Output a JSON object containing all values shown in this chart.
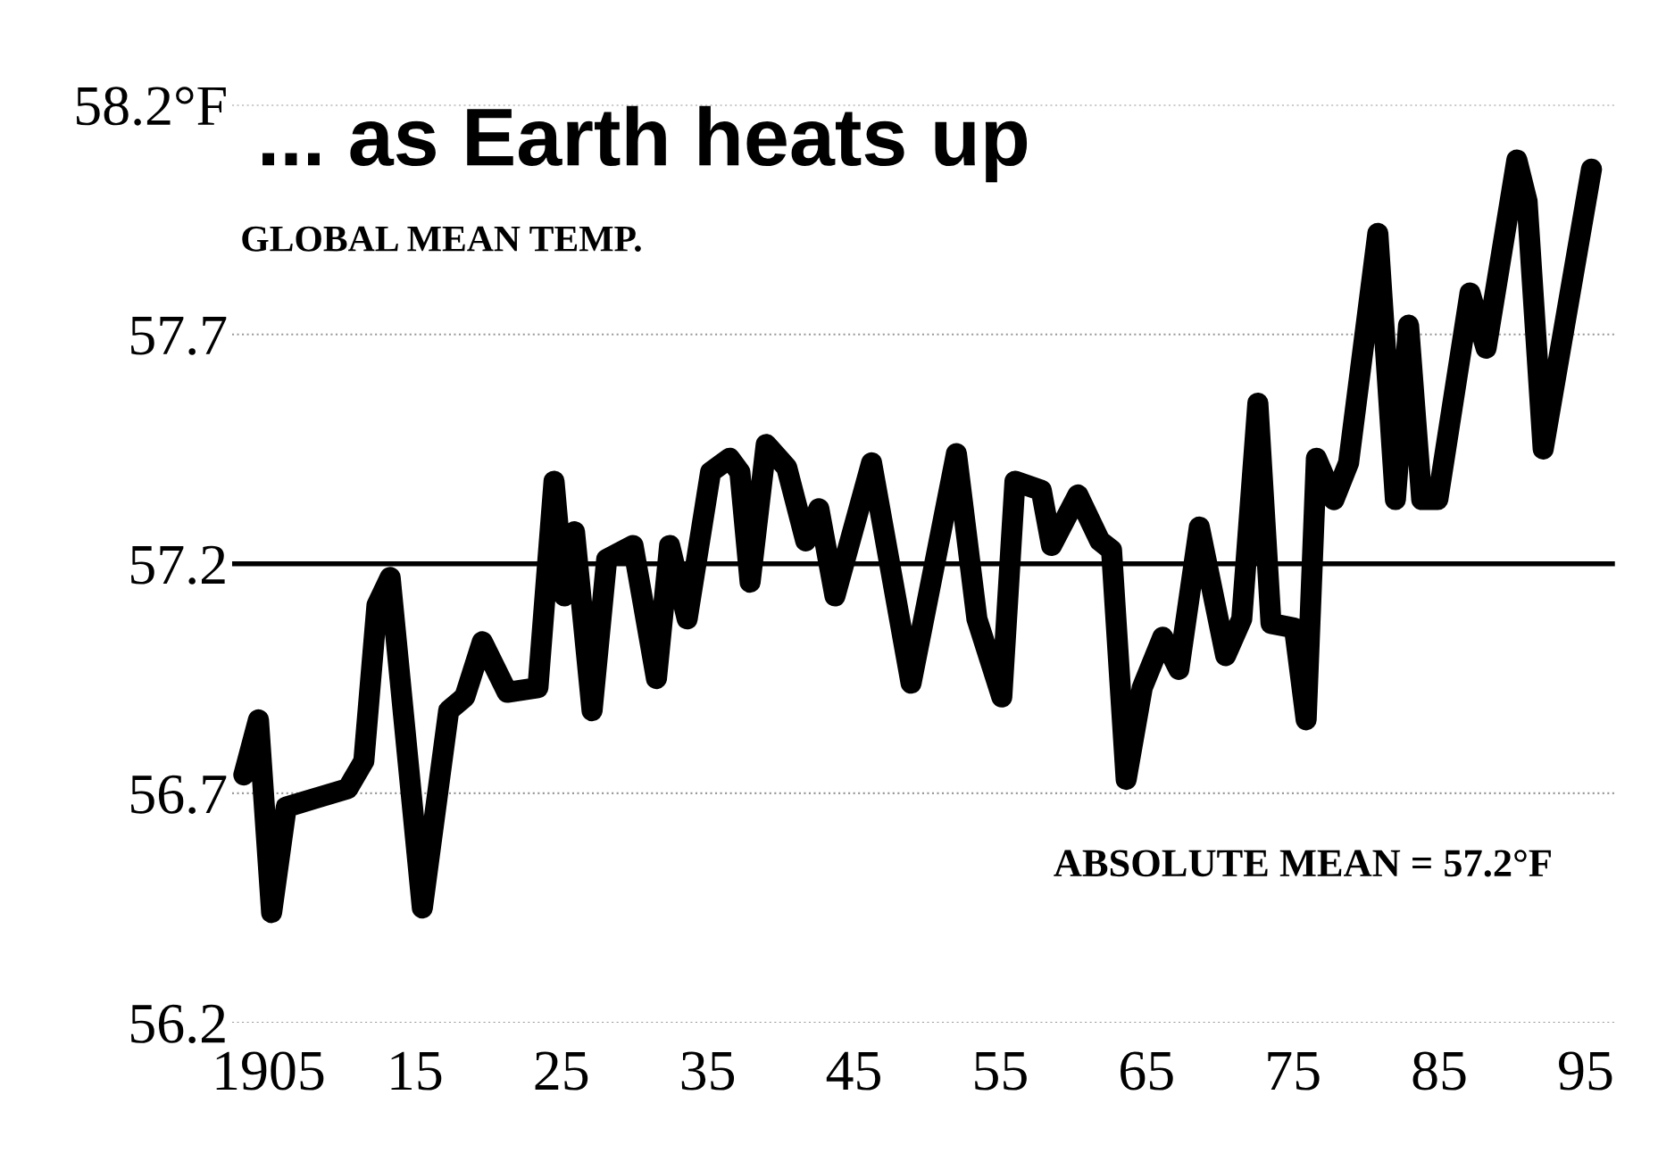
{
  "chart_data": {
    "type": "line",
    "title": "... as Earth heats up",
    "subtitle": "GLOBAL MEAN TEMP.",
    "x": [
      1903.3,
      1904.3,
      1905.2,
      1906.2,
      1908.3,
      1910.4,
      1911.5,
      1912.4,
      1913.3,
      1915.5,
      1917.3,
      1918.4,
      1919.6,
      1921.3,
      1923.4,
      1924.5,
      1925.2,
      1925.9,
      1927.1,
      1928.1,
      1929.9,
      1931.5,
      1932.4,
      1933.6,
      1935.2,
      1936.5,
      1937.2,
      1937.9,
      1939.0,
      1940.4,
      1941.7,
      1942.6,
      1943.7,
      1946.2,
      1948.9,
      1952.0,
      1953.4,
      1955.1,
      1956.0,
      1957.8,
      1958.5,
      1960.3,
      1961.8,
      1962.6,
      1963.6,
      1964.7,
      1966.1,
      1967.2,
      1968.6,
      1970.4,
      1971.5,
      1972.6,
      1973.5,
      1975.1,
      1975.9,
      1976.6,
      1977.8,
      1978.8,
      1980.8,
      1982.0,
      1982.9,
      1983.8,
      1984.9,
      1987.1,
      1988.2,
      1990.3,
      1991.0,
      1992.1,
      1995.4
    ],
    "series": [
      {
        "color": "#000000",
        "values": [
          56.74,
          56.86,
          56.44,
          56.67,
          56.69,
          56.71,
          56.77,
          57.11,
          57.17,
          56.45,
          56.88,
          56.91,
          57.03,
          56.92,
          56.93,
          57.38,
          57.13,
          57.27,
          56.88,
          57.21,
          57.24,
          56.95,
          57.24,
          57.08,
          57.4,
          57.43,
          57.4,
          57.16,
          57.46,
          57.41,
          57.25,
          57.32,
          57.13,
          57.42,
          56.94,
          57.44,
          57.08,
          56.91,
          57.38,
          57.36,
          57.24,
          57.35,
          57.25,
          57.23,
          56.73,
          56.93,
          57.04,
          56.97,
          57.28,
          57.0,
          57.08,
          57.55,
          57.07,
          57.06,
          56.86,
          57.43,
          57.34,
          57.42,
          57.92,
          57.34,
          57.72,
          57.34,
          57.34,
          57.79,
          57.67,
          58.08,
          57.99,
          57.45,
          58.06
        ]
      }
    ],
    "xlim": [
      1902.5,
      1997
    ],
    "xticks": [
      {
        "value": 1905,
        "label": "1905"
      },
      {
        "value": 1915,
        "label": "15"
      },
      {
        "value": 1925,
        "label": "25"
      },
      {
        "value": 1935,
        "label": "35"
      },
      {
        "value": 1945,
        "label": "45"
      },
      {
        "value": 1955,
        "label": "55"
      },
      {
        "value": 1965,
        "label": "65"
      },
      {
        "value": 1975,
        "label": "75"
      },
      {
        "value": 1985,
        "label": "85"
      },
      {
        "value": 1995,
        "label": "95"
      }
    ],
    "ylim": [
      56.2,
      58.2
    ],
    "yticks": [
      56.2,
      56.7,
      57.2,
      57.7,
      {
        "value": 58.2,
        "label": "58.2°F"
      }
    ],
    "ref_lines": [
      {
        "axis": "y",
        "value": 57.2,
        "label": "ABSOLUTE MEAN = 57.2°F",
        "color": "#000000",
        "line_style": "solid"
      }
    ],
    "grid": "y",
    "line_style": "solid",
    "legend": false
  }
}
